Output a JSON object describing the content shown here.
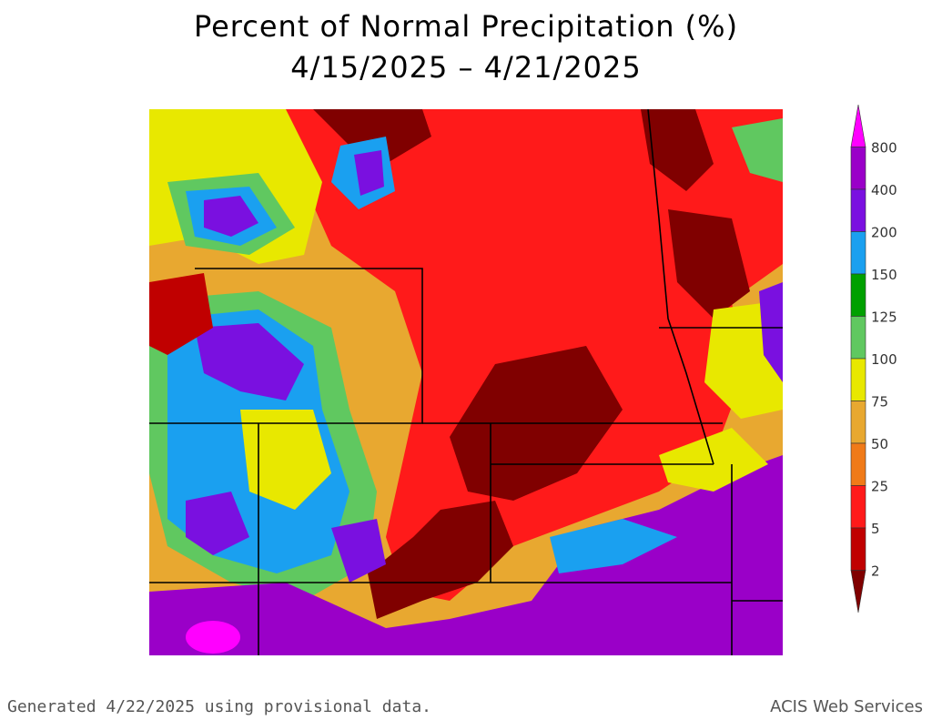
{
  "header": {
    "title": "Percent of Normal Precipitation (%)",
    "date_range": "4/15/2025 – 4/21/2025"
  },
  "legend": {
    "labels": [
      "800",
      "400",
      "200",
      "150",
      "125",
      "100",
      "75",
      "50",
      "25",
      "5",
      "2"
    ],
    "colors": [
      "#ff00ff",
      "#9a00c8",
      "#7a10e0",
      "#1aa0f0",
      "#00a000",
      "#60c860",
      "#e8e800",
      "#e8a830",
      "#f07a18",
      "#ff1a1a",
      "#c00000",
      "#800000"
    ]
  },
  "map": {
    "background_color": "#e8a830",
    "regions": [
      {
        "icon": "purple-region",
        "color": "#9a00c8"
      },
      {
        "icon": "blue-region",
        "color": "#1aa0f0"
      },
      {
        "icon": "red-region",
        "color": "#ff1a1a"
      },
      {
        "icon": "darkred-region",
        "color": "#800000"
      },
      {
        "icon": "green-region",
        "color": "#00a000"
      },
      {
        "icon": "yellow-region",
        "color": "#e8e800"
      }
    ]
  },
  "footer": {
    "generated_text": "Generated 4/22/2025 using provisional data.",
    "credit": "ACIS Web Services"
  }
}
